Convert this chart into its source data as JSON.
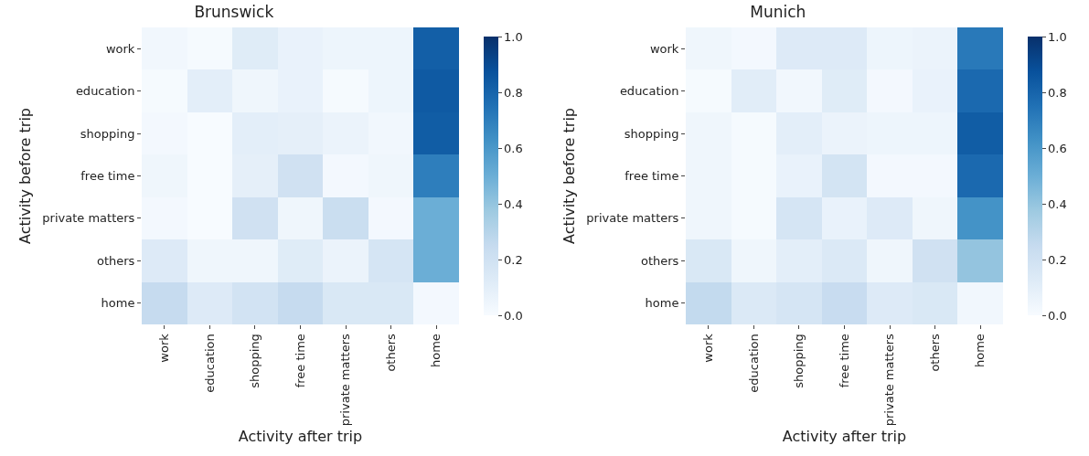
{
  "chart_data": [
    {
      "type": "heatmap",
      "title": "Brunswick",
      "xlabel": "Activity after trip",
      "ylabel": "Activity before trip",
      "categories": [
        "work",
        "education",
        "shopping",
        "free time",
        "private matters",
        "others",
        "home"
      ],
      "y_categories": [
        "work",
        "education",
        "shopping",
        "free time",
        "private matters",
        "others",
        "home"
      ],
      "cells": [
        [
          0.03,
          0.01,
          0.12,
          0.07,
          0.05,
          0.05,
          0.82
        ],
        [
          0.01,
          0.1,
          0.04,
          0.07,
          0.01,
          0.05,
          0.84
        ],
        [
          0.02,
          0.0,
          0.1,
          0.09,
          0.06,
          0.03,
          0.83
        ],
        [
          0.04,
          0.0,
          0.09,
          0.2,
          0.02,
          0.04,
          0.7
        ],
        [
          0.02,
          0.0,
          0.2,
          0.04,
          0.23,
          0.02,
          0.5
        ],
        [
          0.13,
          0.04,
          0.04,
          0.12,
          0.06,
          0.17,
          0.5
        ],
        [
          0.25,
          0.13,
          0.19,
          0.25,
          0.15,
          0.15,
          0.02
        ]
      ],
      "clim": [
        0,
        1
      ],
      "cticks": [
        {
          "value": 0,
          "label": "0.0"
        },
        {
          "value": 0.2,
          "label": "0.2"
        },
        {
          "value": 0.4,
          "label": "0.4"
        },
        {
          "value": 0.6,
          "label": "0.6"
        },
        {
          "value": 0.8,
          "label": "0.8"
        },
        {
          "value": 1,
          "label": "1.0"
        }
      ]
    },
    {
      "type": "heatmap",
      "title": "Munich",
      "xlabel": "Activity after trip",
      "ylabel": "Activity before trip",
      "categories": [
        "work",
        "education",
        "shopping",
        "free time",
        "private matters",
        "others",
        "home"
      ],
      "y_categories": [
        "work",
        "education",
        "shopping",
        "free time",
        "private matters",
        "others",
        "home"
      ],
      "cells": [
        [
          0.04,
          0.02,
          0.13,
          0.13,
          0.05,
          0.06,
          0.72
        ],
        [
          0.01,
          0.11,
          0.03,
          0.12,
          0.02,
          0.07,
          0.78
        ],
        [
          0.04,
          0.01,
          0.1,
          0.06,
          0.05,
          0.05,
          0.83
        ],
        [
          0.04,
          0.01,
          0.07,
          0.18,
          0.02,
          0.02,
          0.78
        ],
        [
          0.04,
          0.01,
          0.17,
          0.07,
          0.13,
          0.04,
          0.62
        ],
        [
          0.15,
          0.04,
          0.1,
          0.14,
          0.04,
          0.2,
          0.4
        ],
        [
          0.26,
          0.14,
          0.17,
          0.24,
          0.13,
          0.15,
          0.03
        ]
      ],
      "clim": [
        0,
        1
      ],
      "cticks": [
        {
          "value": 0,
          "label": "0.0"
        },
        {
          "value": 0.2,
          "label": "0.2"
        },
        {
          "value": 0.4,
          "label": "0.4"
        },
        {
          "value": 0.6,
          "label": "0.6"
        },
        {
          "value": 0.8,
          "label": "0.8"
        },
        {
          "value": 1,
          "label": "1.0"
        }
      ]
    }
  ]
}
